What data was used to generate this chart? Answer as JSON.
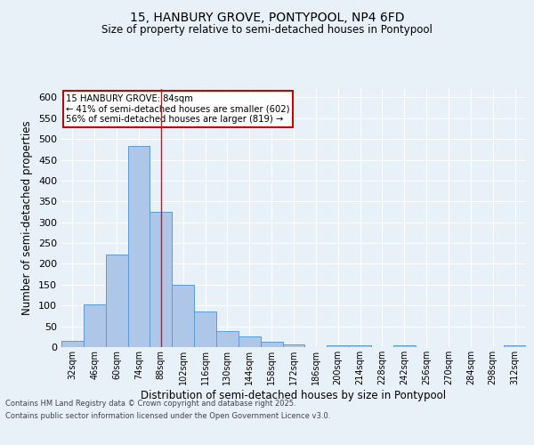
{
  "title_line1": "15, HANBURY GROVE, PONTYPOOL, NP4 6FD",
  "title_line2": "Size of property relative to semi-detached houses in Pontypool",
  "xlabel": "Distribution of semi-detached houses by size in Pontypool",
  "ylabel": "Number of semi-detached properties",
  "footer_line1": "Contains HM Land Registry data © Crown copyright and database right 2025.",
  "footer_line2": "Contains public sector information licensed under the Open Government Licence v3.0.",
  "bin_labels": [
    "32sqm",
    "46sqm",
    "60sqm",
    "74sqm",
    "88sqm",
    "102sqm",
    "116sqm",
    "130sqm",
    "144sqm",
    "158sqm",
    "172sqm",
    "186sqm",
    "200sqm",
    "214sqm",
    "228sqm",
    "242sqm",
    "256sqm",
    "270sqm",
    "284sqm",
    "298sqm",
    "312sqm"
  ],
  "bar_values": [
    15,
    103,
    222,
    484,
    325,
    150,
    85,
    38,
    26,
    12,
    6,
    0,
    5,
    4,
    0,
    4,
    0,
    0,
    0,
    0,
    5
  ],
  "bar_color": "#aec6e8",
  "bar_edge_color": "#5b9bd5",
  "property_label": "15 HANBURY GROVE: 84sqm",
  "pct_smaller": 41,
  "count_smaller": 602,
  "pct_larger": 56,
  "count_larger": 819,
  "red_line_bin_index": 4,
  "annotation_box_color": "#ffffff",
  "annotation_box_edge": "#cc0000",
  "ylim": [
    0,
    620
  ],
  "yticks": [
    0,
    50,
    100,
    150,
    200,
    250,
    300,
    350,
    400,
    450,
    500,
    550,
    600
  ],
  "background_color": "#e8f0f8",
  "grid_color": "#ffffff"
}
